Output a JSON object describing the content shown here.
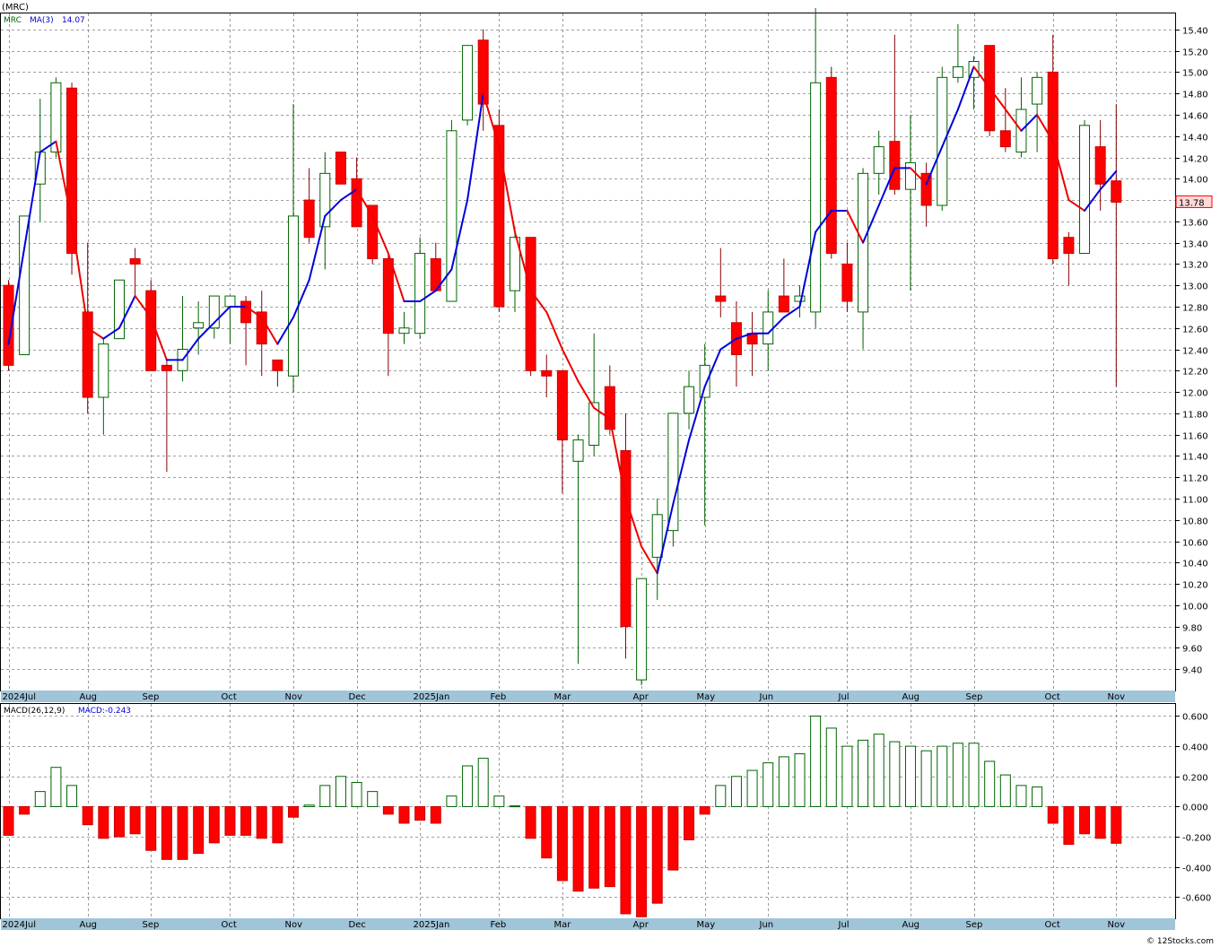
{
  "header": {
    "symbol_title": "(MRC)"
  },
  "legend_price": {
    "symbol": "MRC",
    "ma_label": "MA(3)",
    "ma_value": "14.07"
  },
  "legend_macd": {
    "name": "MACD(26,12,9)",
    "value_label": "MACD:-0.243"
  },
  "current_price": "13.78",
  "watermark": "© 12Stocks.com",
  "colors": {
    "up": "#ffffff",
    "up_border": "#006400",
    "down": "#ff0000",
    "ma_up": "#0000dd",
    "ma_down": "#ee0000",
    "macd_pos_border": "#006400",
    "macd_neg": "#ff0000",
    "axis_bar": "#a0c4d8"
  },
  "price_axis_ticks": [
    "15.40",
    "15.20",
    "15.00",
    "14.80",
    "14.60",
    "14.40",
    "14.20",
    "14.00",
    "13.80",
    "13.60",
    "13.40",
    "13.20",
    "13.00",
    "12.80",
    "12.60",
    "12.40",
    "12.20",
    "12.00",
    "11.80",
    "11.60",
    "11.40",
    "11.20",
    "11.00",
    "10.80",
    "10.60",
    "10.40",
    "10.20",
    "10.00",
    "9.80",
    "9.60",
    "9.40"
  ],
  "macd_axis_ticks": [
    "0.600",
    "0.400",
    "0.200",
    "0.000",
    "-0.200",
    "-0.400",
    "-0.600"
  ],
  "x_labels": [
    {
      "label": "2024Jul",
      "i": 0
    },
    {
      "label": "Aug",
      "i": 5
    },
    {
      "label": "Sep",
      "i": 9
    },
    {
      "label": "Oct",
      "i": 14
    },
    {
      "label": "Nov",
      "i": 18
    },
    {
      "label": "Dec",
      "i": 22
    },
    {
      "label": "2025Jan",
      "i": 26
    },
    {
      "label": "Feb",
      "i": 31
    },
    {
      "label": "Mar",
      "i": 35
    },
    {
      "label": "Apr",
      "i": 40
    },
    {
      "label": "May",
      "i": 44
    },
    {
      "label": "Jun",
      "i": 48
    },
    {
      "label": "Jul",
      "i": 53
    },
    {
      "label": "Aug",
      "i": 57
    },
    {
      "label": "Sep",
      "i": 61
    },
    {
      "label": "Oct",
      "i": 66
    },
    {
      "label": "Nov",
      "i": 70
    }
  ],
  "chart_data": {
    "type": "candlestick",
    "title": "(MRC)",
    "ylim": [
      9.2,
      15.55
    ],
    "macd_ylim": [
      -0.74,
      0.68
    ],
    "candles": [
      {
        "o": 13.0,
        "h": 13.05,
        "l": 12.2,
        "c": 12.25
      },
      {
        "o": 12.35,
        "h": 13.65,
        "l": 12.35,
        "c": 13.65
      },
      {
        "o": 13.95,
        "h": 14.75,
        "l": 13.6,
        "c": 14.25
      },
      {
        "o": 14.25,
        "h": 14.95,
        "l": 14.2,
        "c": 14.9
      },
      {
        "o": 14.85,
        "h": 14.9,
        "l": 13.1,
        "c": 13.3
      },
      {
        "o": 12.75,
        "h": 13.4,
        "l": 11.8,
        "c": 11.95
      },
      {
        "o": 11.95,
        "h": 12.5,
        "l": 11.6,
        "c": 12.45
      },
      {
        "o": 12.5,
        "h": 13.05,
        "l": 12.5,
        "c": 13.05
      },
      {
        "o": 13.25,
        "h": 13.35,
        "l": 12.9,
        "c": 13.2
      },
      {
        "o": 12.95,
        "h": 13.05,
        "l": 12.2,
        "c": 12.2
      },
      {
        "o": 12.25,
        "h": 12.3,
        "l": 11.25,
        "c": 12.2
      },
      {
        "o": 12.2,
        "h": 12.9,
        "l": 12.1,
        "c": 12.4
      },
      {
        "o": 12.6,
        "h": 12.85,
        "l": 12.35,
        "c": 12.65
      },
      {
        "o": 12.6,
        "h": 12.9,
        "l": 12.5,
        "c": 12.9
      },
      {
        "o": 12.8,
        "h": 12.9,
        "l": 12.45,
        "c": 12.9
      },
      {
        "o": 12.85,
        "h": 12.9,
        "l": 12.25,
        "c": 12.65
      },
      {
        "o": 12.75,
        "h": 12.95,
        "l": 12.15,
        "c": 12.45
      },
      {
        "o": 12.3,
        "h": 12.3,
        "l": 12.05,
        "c": 12.2
      },
      {
        "o": 12.15,
        "h": 14.7,
        "l": 12.0,
        "c": 13.65
      },
      {
        "o": 13.8,
        "h": 14.1,
        "l": 13.4,
        "c": 13.45
      },
      {
        "o": 13.55,
        "h": 14.25,
        "l": 13.15,
        "c": 14.05
      },
      {
        "o": 14.25,
        "h": 14.25,
        "l": 13.95,
        "c": 13.95
      },
      {
        "o": 14.0,
        "h": 14.2,
        "l": 13.55,
        "c": 13.55
      },
      {
        "o": 13.75,
        "h": 13.75,
        "l": 13.2,
        "c": 13.25
      },
      {
        "o": 13.25,
        "h": 13.3,
        "l": 12.15,
        "c": 12.55
      },
      {
        "o": 12.55,
        "h": 12.75,
        "l": 12.45,
        "c": 12.6
      },
      {
        "o": 12.55,
        "h": 13.45,
        "l": 12.5,
        "c": 13.3
      },
      {
        "o": 13.25,
        "h": 13.4,
        "l": 12.95,
        "c": 12.95
      },
      {
        "o": 12.85,
        "h": 14.55,
        "l": 12.85,
        "c": 14.45
      },
      {
        "o": 14.55,
        "h": 15.25,
        "l": 14.5,
        "c": 15.25
      },
      {
        "o": 15.3,
        "h": 15.4,
        "l": 14.45,
        "c": 14.7
      },
      {
        "o": 14.5,
        "h": 14.65,
        "l": 12.75,
        "c": 12.8
      },
      {
        "o": 12.95,
        "h": 13.55,
        "l": 12.75,
        "c": 13.45
      },
      {
        "o": 13.45,
        "h": 13.45,
        "l": 12.15,
        "c": 12.2
      },
      {
        "o": 12.2,
        "h": 12.35,
        "l": 11.95,
        "c": 12.15
      },
      {
        "o": 12.2,
        "h": 12.2,
        "l": 11.05,
        "c": 11.55
      },
      {
        "o": 11.35,
        "h": 11.6,
        "l": 9.45,
        "c": 11.55
      },
      {
        "o": 11.5,
        "h": 12.55,
        "l": 11.4,
        "c": 11.9
      },
      {
        "o": 12.05,
        "h": 12.25,
        "l": 11.6,
        "c": 11.65
      },
      {
        "o": 11.45,
        "h": 11.8,
        "l": 9.5,
        "c": 9.8
      },
      {
        "o": 9.3,
        "h": 10.25,
        "l": 9.25,
        "c": 10.25
      },
      {
        "o": 10.45,
        "h": 11.0,
        "l": 10.05,
        "c": 10.85
      },
      {
        "o": 10.7,
        "h": 11.8,
        "l": 10.55,
        "c": 11.8
      },
      {
        "o": 11.8,
        "h": 12.2,
        "l": 11.65,
        "c": 12.05
      },
      {
        "o": 11.95,
        "h": 12.45,
        "l": 10.75,
        "c": 12.25
      },
      {
        "o": 12.9,
        "h": 13.35,
        "l": 12.7,
        "c": 12.85
      },
      {
        "o": 12.65,
        "h": 12.85,
        "l": 12.05,
        "c": 12.35
      },
      {
        "o": 12.55,
        "h": 12.75,
        "l": 12.15,
        "c": 12.45
      },
      {
        "o": 12.45,
        "h": 12.95,
        "l": 12.2,
        "c": 12.75
      },
      {
        "o": 12.9,
        "h": 13.25,
        "l": 12.75,
        "c": 12.75
      },
      {
        "o": 12.85,
        "h": 13.0,
        "l": 12.7,
        "c": 12.9
      },
      {
        "o": 12.75,
        "h": 15.6,
        "l": 12.6,
        "c": 14.9
      },
      {
        "o": 14.95,
        "h": 15.05,
        "l": 13.25,
        "c": 13.3
      },
      {
        "o": 13.2,
        "h": 13.4,
        "l": 12.75,
        "c": 12.85
      },
      {
        "o": 12.75,
        "h": 14.1,
        "l": 12.4,
        "c": 14.05
      },
      {
        "o": 14.05,
        "h": 14.45,
        "l": 13.85,
        "c": 14.3
      },
      {
        "o": 14.35,
        "h": 15.35,
        "l": 13.85,
        "c": 13.9
      },
      {
        "o": 13.9,
        "h": 14.6,
        "l": 12.95,
        "c": 14.15
      },
      {
        "o": 14.05,
        "h": 14.15,
        "l": 13.55,
        "c": 13.75
      },
      {
        "o": 13.75,
        "h": 15.05,
        "l": 13.7,
        "c": 14.95
      },
      {
        "o": 14.95,
        "h": 15.45,
        "l": 14.9,
        "c": 15.05
      },
      {
        "o": 14.95,
        "h": 15.15,
        "l": 14.65,
        "c": 15.1
      },
      {
        "o": 15.25,
        "h": 15.25,
        "l": 14.4,
        "c": 14.45
      },
      {
        "o": 14.45,
        "h": 14.85,
        "l": 14.25,
        "c": 14.3
      },
      {
        "o": 14.25,
        "h": 14.95,
        "l": 14.2,
        "c": 14.65
      },
      {
        "o": 14.7,
        "h": 15.0,
        "l": 14.25,
        "c": 14.95
      },
      {
        "o": 15.0,
        "h": 15.35,
        "l": 13.2,
        "c": 13.25
      },
      {
        "o": 13.45,
        "h": 13.5,
        "l": 13.0,
        "c": 13.3
      },
      {
        "o": 13.3,
        "h": 14.55,
        "l": 13.3,
        "c": 14.5
      },
      {
        "o": 14.3,
        "h": 14.55,
        "l": 13.7,
        "c": 13.95
      },
      {
        "o": 13.98,
        "h": 14.7,
        "l": 12.05,
        "c": 13.78
      }
    ],
    "ma3": [
      12.45,
      13.35,
      14.25,
      14.35,
      13.6,
      12.6,
      12.5,
      12.6,
      12.9,
      12.7,
      12.3,
      12.3,
      12.5,
      12.65,
      12.8,
      12.8,
      12.7,
      12.45,
      12.7,
      13.05,
      13.65,
      13.8,
      13.9,
      13.65,
      13.3,
      12.85,
      12.85,
      12.95,
      13.15,
      13.8,
      14.8,
      14.3,
      13.5,
      12.95,
      12.75,
      12.4,
      12.1,
      11.85,
      11.75,
      11.0,
      10.55,
      10.3,
      10.95,
      11.55,
      12.05,
      12.4,
      12.5,
      12.55,
      12.55,
      12.7,
      12.8,
      13.5,
      13.7,
      13.7,
      13.4,
      13.75,
      14.1,
      14.1,
      13.95,
      14.3,
      14.65,
      15.05,
      14.85,
      14.65,
      14.45,
      14.6,
      14.35,
      13.8,
      13.7,
      13.9,
      14.07
    ],
    "macd": [
      -0.19,
      -0.05,
      0.1,
      0.26,
      0.14,
      -0.12,
      -0.21,
      -0.2,
      -0.18,
      -0.29,
      -0.35,
      -0.35,
      -0.31,
      -0.24,
      -0.19,
      -0.19,
      -0.21,
      -0.24,
      -0.07,
      0.01,
      0.14,
      0.2,
      0.16,
      0.1,
      -0.05,
      -0.11,
      -0.09,
      -0.11,
      0.07,
      0.27,
      0.32,
      0.07,
      0.005,
      -0.21,
      -0.34,
      -0.49,
      -0.56,
      -0.54,
      -0.53,
      -0.71,
      -0.73,
      -0.64,
      -0.42,
      -0.22,
      -0.05,
      0.14,
      0.2,
      0.24,
      0.29,
      0.33,
      0.35,
      0.6,
      0.52,
      0.4,
      0.44,
      0.48,
      0.43,
      0.4,
      0.37,
      0.4,
      0.42,
      0.42,
      0.3,
      0.21,
      0.14,
      0.13,
      -0.11,
      -0.25,
      -0.18,
      -0.21,
      -0.243
    ]
  }
}
